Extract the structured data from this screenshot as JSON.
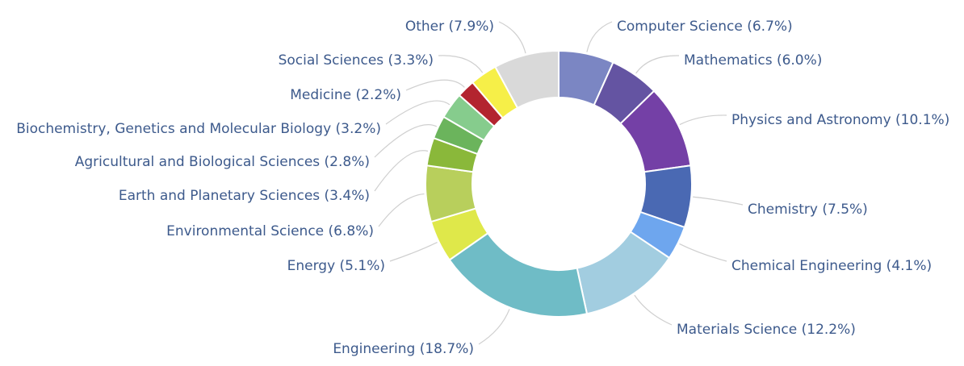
{
  "chart_data": {
    "type": "pie",
    "donut": true,
    "categories": [
      "Computer Science",
      "Mathematics",
      "Physics and Astronomy",
      "Chemistry",
      "Chemical Engineering",
      "Materials Science",
      "Engineering",
      "Energy",
      "Environmental Science",
      "Earth and Planetary Sciences",
      "Agricultural and Biological Sciences",
      "Biochemistry, Genetics and Molecular Biology",
      "Medicine",
      "Social Sciences",
      "Other"
    ],
    "values": [
      6.7,
      6.0,
      10.1,
      7.5,
      4.1,
      12.2,
      18.7,
      5.1,
      6.8,
      3.4,
      2.8,
      3.2,
      2.2,
      3.3,
      7.9
    ],
    "labels": [
      "Computer Science (6.7%)",
      "Mathematics (6.0%)",
      "Physics and Astronomy (10.1%)",
      "Chemistry (7.5%)",
      "Chemical Engineering (4.1%)",
      "Materials Science (12.2%)",
      "Engineering (18.7%)",
      "Energy (5.1%)",
      "Environmental Science (6.8%)",
      "Earth and Planetary Sciences (3.4%)",
      "Agricultural and Biological Sciences (2.8%)",
      "Biochemistry, Genetics and Molecular Biology (3.2%)",
      "Medicine (2.2%)",
      "Social Sciences (3.3%)",
      "Other (7.9%)"
    ],
    "colors": [
      "#7b86c3",
      "#6454a2",
      "#7440a6",
      "#4a69b3",
      "#6ea6ee",
      "#a2cde0",
      "#6fbcc6",
      "#dfe84a",
      "#b8cf5c",
      "#8ab83a",
      "#6bb45c",
      "#86cc8d",
      "#b3242f",
      "#f6ef48",
      "#d9d9d9"
    ],
    "legend": "none",
    "label_color": "#3d5a8c",
    "leader_color": "#cfcfcf"
  }
}
